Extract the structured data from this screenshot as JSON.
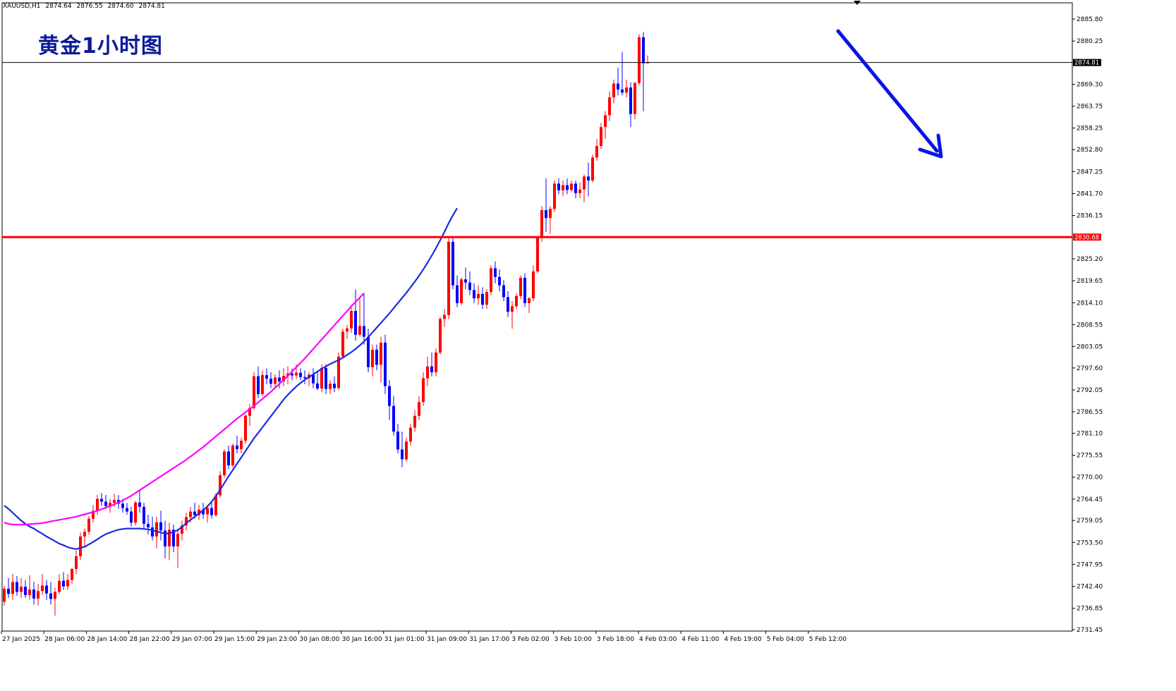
{
  "header": {
    "symbol": "XAUUSD,H1",
    "open": "2874.64",
    "high": "2876.55",
    "low": "2874.60",
    "close": "2874.81"
  },
  "chart_data": {
    "type": "candlestick",
    "title": "黄金1小时图",
    "symbol": "XAUUSD",
    "timeframe": "H1",
    "ylim": [
      2731.45,
      2885.8
    ],
    "yticks": [
      "2885.80",
      "2880.25",
      "2874.81",
      "2869.30",
      "2863.75",
      "2858.25",
      "2852.80",
      "2847.25",
      "2841.70",
      "2836.15",
      "2830.68",
      "2825.20",
      "2819.65",
      "2814.10",
      "2808.55",
      "2803.05",
      "2797.60",
      "2792.05",
      "2786.55",
      "2781.10",
      "2775.55",
      "2770.00",
      "2764.45",
      "2759.05",
      "2753.50",
      "2747.95",
      "2742.40",
      "2736.85",
      "2731.45"
    ],
    "xticks": [
      "27 Jan 2025",
      "28 Jan 06:00",
      "28 Jan 14:00",
      "28 Jan 22:00",
      "29 Jan 07:00",
      "29 Jan 15:00",
      "29 Jan 23:00",
      "30 Jan 08:00",
      "30 Jan 16:00",
      "31 Jan 01:00",
      "31 Jan 09:00",
      "31 Jan 17:00",
      "3 Feb 02:00",
      "3 Feb 10:00",
      "3 Feb 18:00",
      "4 Feb 03:00",
      "4 Feb 11:00",
      "4 Feb 19:00",
      "5 Feb 04:00",
      "5 Feb 12:00"
    ],
    "current_price": {
      "value": 2874.81,
      "label": "2874.81"
    },
    "resistance": {
      "value": 2830.68,
      "label": "2830.68"
    },
    "colors": {
      "bull": "#ff0000",
      "bear": "#0000ff",
      "ma_fast": "#1a2ddb",
      "ma_slow": "#ff00ff",
      "resistance": "#ff0000",
      "arrow": "#0a14e6",
      "title": "#0a1a9a"
    },
    "candles": [
      [
        2738.5,
        2742.5,
        2737.5,
        2741.8
      ],
      [
        2741.8,
        2744.5,
        2739.5,
        2740.5
      ],
      [
        2740.5,
        2745.5,
        2739.0,
        2743.5
      ],
      [
        2743.5,
        2745.0,
        2740.0,
        2741.0
      ],
      [
        2741.0,
        2744.5,
        2739.5,
        2742.3
      ],
      [
        2742.3,
        2744.0,
        2739.5,
        2740.2
      ],
      [
        2740.2,
        2745.2,
        2739.0,
        2741.6
      ],
      [
        2741.6,
        2743.5,
        2737.8,
        2739.3
      ],
      [
        2739.3,
        2743.0,
        2737.5,
        2741.2
      ],
      [
        2741.2,
        2745.5,
        2740.2,
        2742.6
      ],
      [
        2742.6,
        2744.0,
        2739.0,
        2740.6
      ],
      [
        2740.6,
        2743.5,
        2737.8,
        2739.2
      ],
      [
        2739.2,
        2742.0,
        2735.0,
        2741.0
      ],
      [
        2741.0,
        2745.5,
        2740.5,
        2743.8
      ],
      [
        2743.8,
        2746.0,
        2741.5,
        2742.4
      ],
      [
        2742.4,
        2745.5,
        2741.5,
        2744.0
      ],
      [
        2744.0,
        2747.0,
        2743.0,
        2746.8
      ],
      [
        2746.8,
        2751.5,
        2745.5,
        2750.0
      ],
      [
        2750.0,
        2756.0,
        2749.0,
        2755.0
      ],
      [
        2755.0,
        2757.0,
        2752.5,
        2756.2
      ],
      [
        2756.2,
        2760.2,
        2755.5,
        2759.5
      ],
      [
        2759.5,
        2763.0,
        2758.5,
        2761.5
      ],
      [
        2761.5,
        2765.5,
        2760.5,
        2764.5
      ],
      [
        2764.5,
        2766.0,
        2762.8,
        2763.8
      ],
      [
        2763.8,
        2765.5,
        2762.0,
        2762.7
      ],
      [
        2762.7,
        2764.5,
        2761.0,
        2763.5
      ],
      [
        2763.5,
        2765.8,
        2762.5,
        2764.2
      ],
      [
        2764.2,
        2765.5,
        2762.0,
        2763.3
      ],
      [
        2763.3,
        2764.5,
        2761.0,
        2762.2
      ],
      [
        2762.2,
        2763.5,
        2760.5,
        2761.3
      ],
      [
        2761.3,
        2762.5,
        2757.5,
        2758.5
      ],
      [
        2758.5,
        2764.0,
        2757.8,
        2763.6
      ],
      [
        2763.6,
        2766.5,
        2761.0,
        2762.5
      ],
      [
        2762.5,
        2763.5,
        2757.0,
        2758.2
      ],
      [
        2758.2,
        2760.5,
        2755.5,
        2757.3
      ],
      [
        2757.3,
        2760.0,
        2754.0,
        2755.0
      ],
      [
        2755.0,
        2760.0,
        2752.0,
        2758.6
      ],
      [
        2758.6,
        2761.5,
        2754.0,
        2756.5
      ],
      [
        2756.5,
        2759.0,
        2749.5,
        2752.5
      ],
      [
        2752.5,
        2758.5,
        2749.0,
        2756.7
      ],
      [
        2756.7,
        2758.0,
        2751.0,
        2752.5
      ],
      [
        2752.5,
        2757.0,
        2747.0,
        2755.7
      ],
      [
        2755.7,
        2759.0,
        2754.0,
        2757.8
      ],
      [
        2757.8,
        2761.0,
        2756.5,
        2759.9
      ],
      [
        2759.9,
        2762.5,
        2758.5,
        2761.3
      ],
      [
        2761.3,
        2763.5,
        2759.5,
        2760.4
      ],
      [
        2760.4,
        2763.0,
        2759.2,
        2761.8
      ],
      [
        2761.8,
        2763.5,
        2759.5,
        2760.6
      ],
      [
        2760.6,
        2763.0,
        2758.5,
        2762.2
      ],
      [
        2762.2,
        2763.5,
        2759.5,
        2760.4
      ],
      [
        2760.4,
        2766.0,
        2760.0,
        2765.4
      ],
      [
        2765.4,
        2771.5,
        2764.8,
        2770.5
      ],
      [
        2770.5,
        2777.0,
        2769.8,
        2776.5
      ],
      [
        2776.5,
        2778.0,
        2772.0,
        2773.0
      ],
      [
        2773.0,
        2778.5,
        2772.5,
        2778.0
      ],
      [
        2778.0,
        2780.5,
        2776.0,
        2777.1
      ],
      [
        2777.1,
        2780.0,
        2776.0,
        2779.2
      ],
      [
        2779.2,
        2786.0,
        2778.5,
        2785.5
      ],
      [
        2785.5,
        2788.5,
        2783.0,
        2787.5
      ],
      [
        2787.5,
        2796.5,
        2787.0,
        2795.5
      ],
      [
        2795.5,
        2798.0,
        2790.0,
        2791.0
      ],
      [
        2791.0,
        2797.0,
        2790.5,
        2795.8
      ],
      [
        2795.8,
        2797.5,
        2793.5,
        2794.9
      ],
      [
        2794.9,
        2796.5,
        2792.5,
        2793.6
      ],
      [
        2793.6,
        2796.0,
        2792.2,
        2795.2
      ],
      [
        2795.2,
        2797.0,
        2792.5,
        2794.2
      ],
      [
        2794.2,
        2797.5,
        2793.0,
        2795.6
      ],
      [
        2795.6,
        2798.0,
        2793.5,
        2796.2
      ],
      [
        2796.2,
        2797.5,
        2794.5,
        2795.7
      ],
      [
        2795.7,
        2798.5,
        2794.8,
        2796.4
      ],
      [
        2796.4,
        2797.5,
        2794.5,
        2795.3
      ],
      [
        2795.3,
        2797.0,
        2793.5,
        2795.0
      ],
      [
        2795.0,
        2796.5,
        2793.0,
        2795.9
      ],
      [
        2795.9,
        2797.5,
        2792.5,
        2793.7
      ],
      [
        2793.7,
        2796.5,
        2792.0,
        2792.4
      ],
      [
        2792.4,
        2798.5,
        2791.5,
        2797.6
      ],
      [
        2797.6,
        2798.5,
        2791.0,
        2792.3
      ],
      [
        2792.3,
        2794.5,
        2791.0,
        2793.6
      ],
      [
        2793.6,
        2795.5,
        2791.5,
        2792.5
      ],
      [
        2792.5,
        2801.5,
        2792.0,
        2800.5
      ],
      [
        2800.5,
        2807.5,
        2800.0,
        2806.8
      ],
      [
        2806.8,
        2808.5,
        2805.0,
        2807.6
      ],
      [
        2807.6,
        2813.5,
        2806.5,
        2812.0
      ],
      [
        2812.0,
        2817.5,
        2804.5,
        2806.0
      ],
      [
        2806.0,
        2815.5,
        2805.5,
        2808.2
      ],
      [
        2808.2,
        2816.5,
        2803.5,
        2805.5
      ],
      [
        2805.5,
        2807.5,
        2796.5,
        2797.8
      ],
      [
        2797.8,
        2803.5,
        2795.5,
        2802.2
      ],
      [
        2802.2,
        2803.5,
        2797.0,
        2798.4
      ],
      [
        2798.4,
        2805.5,
        2794.0,
        2804.0
      ],
      [
        2804.0,
        2806.0,
        2791.0,
        2793.0
      ],
      [
        2793.0,
        2794.5,
        2784.5,
        2788.0
      ],
      [
        2788.0,
        2790.5,
        2780.5,
        2781.5
      ],
      [
        2781.5,
        2783.5,
        2776.0,
        2777.0
      ],
      [
        2777.0,
        2781.5,
        2772.5,
        2774.5
      ],
      [
        2774.5,
        2780.0,
        2774.0,
        2779.0
      ],
      [
        2779.0,
        2783.5,
        2778.0,
        2782.5
      ],
      [
        2782.5,
        2787.0,
        2781.5,
        2785.5
      ],
      [
        2785.5,
        2790.5,
        2784.5,
        2789.0
      ],
      [
        2789.0,
        2796.5,
        2788.0,
        2795.0
      ],
      [
        2795.0,
        2800.5,
        2793.0,
        2798.0
      ],
      [
        2798.0,
        2801.5,
        2795.5,
        2796.5
      ],
      [
        2796.5,
        2802.5,
        2795.5,
        2801.5
      ],
      [
        2801.5,
        2810.5,
        2801.0,
        2810.0
      ],
      [
        2810.0,
        2812.5,
        2808.0,
        2811.0
      ],
      [
        2811.0,
        2830.7,
        2810.0,
        2829.5
      ],
      [
        2829.5,
        2830.7,
        2817.5,
        2818.5
      ],
      [
        2818.5,
        2821.0,
        2813.0,
        2814.0
      ],
      [
        2814.0,
        2820.5,
        2813.5,
        2820.0
      ],
      [
        2820.0,
        2823.0,
        2817.5,
        2819.2
      ],
      [
        2819.2,
        2822.0,
        2816.0,
        2817.3
      ],
      [
        2817.3,
        2819.0,
        2814.0,
        2815.2
      ],
      [
        2815.2,
        2818.5,
        2813.5,
        2816.3
      ],
      [
        2816.3,
        2818.0,
        2812.5,
        2813.6
      ],
      [
        2813.6,
        2817.5,
        2812.5,
        2816.8
      ],
      [
        2816.8,
        2823.5,
        2816.0,
        2822.8
      ],
      [
        2822.8,
        2824.5,
        2819.0,
        2820.6
      ],
      [
        2820.6,
        2822.5,
        2817.0,
        2818.5
      ],
      [
        2818.5,
        2819.8,
        2814.5,
        2815.5
      ],
      [
        2815.5,
        2817.0,
        2810.5,
        2811.8
      ],
      [
        2811.8,
        2814.5,
        2807.5,
        2813.2
      ],
      [
        2813.2,
        2816.5,
        2812.5,
        2815.8
      ],
      [
        2815.8,
        2821.0,
        2815.0,
        2820.4
      ],
      [
        2820.4,
        2821.5,
        2813.0,
        2814.0
      ],
      [
        2814.0,
        2815.5,
        2811.5,
        2815.2
      ],
      [
        2815.2,
        2823.5,
        2814.5,
        2822.0
      ],
      [
        2822.0,
        2831.0,
        2821.5,
        2830.5
      ],
      [
        2830.5,
        2838.5,
        2829.5,
        2837.5
      ],
      [
        2837.5,
        2845.5,
        2832.0,
        2835.5
      ],
      [
        2835.5,
        2838.5,
        2831.5,
        2837.8
      ],
      [
        2837.8,
        2845.0,
        2837.0,
        2844.2
      ],
      [
        2844.2,
        2845.5,
        2841.5,
        2842.5
      ],
      [
        2842.5,
        2845.0,
        2841.0,
        2843.8
      ],
      [
        2843.8,
        2845.5,
        2841.5,
        2842.6
      ],
      [
        2842.6,
        2845.0,
        2842.0,
        2844.2
      ],
      [
        2844.2,
        2845.0,
        2840.5,
        2841.8
      ],
      [
        2841.8,
        2844.5,
        2840.5,
        2842.7
      ],
      [
        2842.7,
        2846.5,
        2839.5,
        2846.0
      ],
      [
        2846.0,
        2849.5,
        2841.0,
        2845.0
      ],
      [
        2845.0,
        2851.5,
        2844.5,
        2850.8
      ],
      [
        2850.8,
        2855.5,
        2850.0,
        2853.7
      ],
      [
        2853.7,
        2859.5,
        2853.0,
        2858.5
      ],
      [
        2858.5,
        2862.5,
        2855.5,
        2861.5
      ],
      [
        2861.5,
        2867.5,
        2860.0,
        2866.0
      ],
      [
        2866.0,
        2870.5,
        2864.5,
        2869.5
      ],
      [
        2869.5,
        2873.5,
        2866.5,
        2868.0
      ],
      [
        2868.0,
        2877.5,
        2866.5,
        2867.2
      ],
      [
        2867.2,
        2870.5,
        2866.0,
        2868.5
      ],
      [
        2868.5,
        2869.8,
        2858.5,
        2861.8
      ],
      [
        2861.8,
        2870.0,
        2860.5,
        2869.6
      ],
      [
        2869.6,
        2882.0,
        2869.0,
        2881.2
      ],
      [
        2881.2,
        2882.5,
        2862.5,
        2874.6
      ],
      [
        2874.6,
        2876.6,
        2874.6,
        2874.8
      ]
    ],
    "indicators": [
      {
        "kind": "moving-average",
        "color": "#1a2ddb",
        "values": [
          2762.8,
          2762.0,
          2761.0,
          2760.0,
          2759.0,
          2758.2,
          2757.5,
          2757.0,
          2756.3,
          2755.7,
          2755.0,
          2754.4,
          2753.8,
          2753.2,
          2752.8,
          2752.3,
          2752.0,
          2751.8,
          2752.1,
          2752.4,
          2753.0,
          2753.6,
          2754.3,
          2755.0,
          2755.6,
          2756.0,
          2756.4,
          2756.7,
          2756.9,
          2757.0,
          2757.0,
          2757.0,
          2757.0,
          2756.9,
          2756.8,
          2756.6,
          2756.3,
          2756.0,
          2755.7,
          2755.8,
          2756.2,
          2756.6,
          2757.4,
          2758.4,
          2759.2,
          2760.0,
          2760.8,
          2761.6,
          2762.6,
          2763.8,
          2765.2,
          2766.8,
          2768.5,
          2770.2,
          2771.8,
          2773.4,
          2775.0,
          2776.6,
          2778.2,
          2779.8,
          2781.2,
          2782.6,
          2784.0,
          2785.4,
          2786.8,
          2788.2,
          2789.6,
          2790.8,
          2791.9,
          2792.9,
          2793.8,
          2794.6,
          2795.3,
          2796.0,
          2796.7,
          2797.4,
          2798.0,
          2798.6,
          2799.1,
          2799.6,
          2800.2,
          2800.9,
          2801.6,
          2802.4,
          2803.3,
          2804.3,
          2805.4,
          2806.6,
          2807.8,
          2809.0,
          2810.2,
          2811.4,
          2812.7,
          2814.0,
          2815.3,
          2816.6,
          2818.0,
          2819.4,
          2820.9,
          2822.5,
          2824.2,
          2826.0,
          2827.9,
          2829.9,
          2832.0,
          2834.2,
          2836.2,
          2838.0
        ]
      },
      {
        "kind": "moving-average",
        "color": "#ff00ff",
        "values": [
          2758.5,
          2758.2,
          2758.0,
          2758.0,
          2758.0,
          2758.0,
          2758.1,
          2758.2,
          2758.3,
          2758.4,
          2758.6,
          2758.8,
          2759.0,
          2759.2,
          2759.4,
          2759.6,
          2759.8,
          2760.0,
          2760.3,
          2760.6,
          2760.9,
          2761.2,
          2761.5,
          2761.9,
          2762.3,
          2762.7,
          2763.1,
          2763.6,
          2764.1,
          2764.7,
          2765.3,
          2766.0,
          2766.7,
          2767.4,
          2768.1,
          2768.8,
          2769.5,
          2770.2,
          2770.9,
          2771.6,
          2772.3,
          2773.0,
          2773.7,
          2774.4,
          2775.2,
          2776.0,
          2776.8,
          2777.6,
          2778.5,
          2779.4,
          2780.3,
          2781.2,
          2782.1,
          2783.0,
          2783.9,
          2784.8,
          2785.6,
          2786.4,
          2787.2,
          2788.0,
          2788.9,
          2789.8,
          2790.7,
          2791.6,
          2792.6,
          2793.6,
          2794.6,
          2795.6,
          2796.7,
          2797.8,
          2798.9,
          2800.0,
          2801.2,
          2802.4,
          2803.6,
          2804.8,
          2806.0,
          2807.2,
          2808.4,
          2809.6,
          2810.8,
          2812.0,
          2813.2,
          2814.3,
          2815.4,
          2816.5
        ]
      }
    ],
    "annotations": [
      {
        "kind": "arrow",
        "direction": "down",
        "color": "#0a14e6"
      }
    ]
  }
}
